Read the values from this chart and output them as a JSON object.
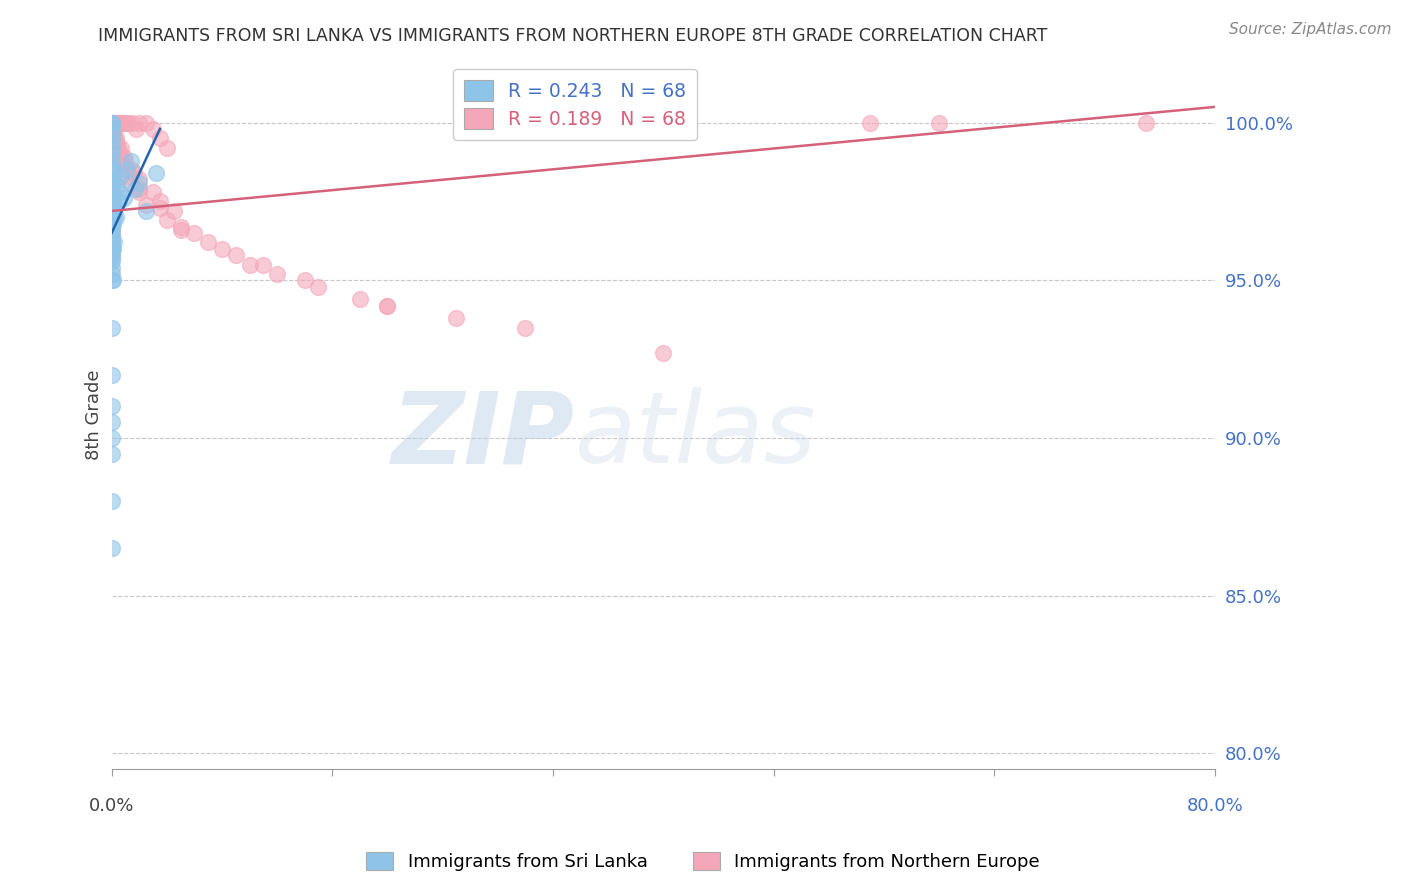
{
  "title": "IMMIGRANTS FROM SRI LANKA VS IMMIGRANTS FROM NORTHERN EUROPE 8TH GRADE CORRELATION CHART",
  "source": "Source: ZipAtlas.com",
  "ylabel": "8th Grade",
  "xlim": [
    0.0,
    80.0
  ],
  "ylim": [
    79.5,
    102.0
  ],
  "y_ticks": [
    80.0,
    85.0,
    90.0,
    95.0,
    100.0
  ],
  "r_sri_lanka": 0.243,
  "r_northern_europe": 0.189,
  "n_sri_lanka": 68,
  "n_northern_europe": 68,
  "blue_color": "#8ec4e8",
  "pink_color": "#f4a7b9",
  "blue_line_color": "#2166ac",
  "pink_line_color": "#d4607a",
  "legend_label_sri": "Immigrants from Sri Lanka",
  "legend_label_north": "Immigrants from Northern Europe",
  "watermark_zip": "ZIP",
  "watermark_atlas": "atlas",
  "sri_lanka_x": [
    0.0,
    0.0,
    0.0,
    0.0,
    0.0,
    0.0,
    0.0,
    0.0,
    0.0,
    0.0,
    0.0,
    0.0,
    0.0,
    0.0,
    0.0,
    0.0,
    0.0,
    0.0,
    0.0,
    0.0,
    0.0,
    0.0,
    0.0,
    0.0,
    0.0,
    0.0,
    0.0,
    0.0,
    0.0,
    0.0,
    0.0,
    0.0,
    0.0,
    0.0,
    0.0,
    0.0,
    0.0,
    0.0,
    0.0,
    0.0,
    0.1,
    0.1,
    0.1,
    0.1,
    0.2,
    0.2,
    0.3,
    0.4,
    0.5,
    0.6,
    0.7,
    0.9,
    1.1,
    1.4,
    1.7,
    2.0,
    2.5,
    3.2,
    0.0,
    0.0,
    0.0,
    0.0,
    0.0,
    0.0,
    0.0,
    0.0,
    0.1,
    0.2
  ],
  "sri_lanka_y": [
    100.0,
    100.0,
    100.0,
    99.8,
    99.6,
    99.4,
    99.2,
    99.0,
    98.8,
    98.6,
    98.4,
    98.2,
    98.0,
    97.8,
    97.6,
    97.4,
    97.2,
    97.0,
    96.8,
    96.6,
    96.4,
    96.2,
    96.0,
    95.8,
    95.6,
    95.4,
    95.2,
    95.0,
    98.5,
    97.5,
    97.3,
    97.1,
    96.9,
    96.1,
    95.9,
    96.7,
    96.5,
    96.3,
    96.0,
    95.7,
    98.2,
    97.5,
    96.8,
    96.0,
    97.3,
    96.2,
    97.0,
    98.0,
    97.5,
    97.8,
    98.3,
    97.6,
    98.5,
    98.8,
    97.9,
    98.1,
    97.2,
    98.4,
    93.5,
    92.0,
    91.0,
    90.5,
    90.0,
    89.5,
    88.0,
    86.5,
    95.0,
    97.0
  ],
  "northern_europe_x": [
    0.1,
    0.2,
    0.3,
    0.4,
    0.5,
    0.6,
    0.7,
    0.8,
    1.0,
    1.2,
    1.5,
    1.8,
    2.0,
    2.5,
    3.0,
    3.5,
    4.0,
    0.1,
    0.2,
    0.3,
    0.4,
    0.5,
    0.7,
    1.0,
    1.5,
    2.0,
    3.0,
    4.5,
    0.2,
    0.3,
    0.5,
    0.8,
    1.2,
    2.0,
    3.5,
    5.0,
    7.0,
    10.0,
    15.0,
    20.0,
    0.3,
    0.6,
    1.0,
    2.0,
    4.0,
    8.0,
    12.0,
    18.0,
    25.0,
    55.0,
    60.0,
    75.0,
    0.4,
    0.9,
    1.6,
    3.5,
    6.0,
    11.0,
    0.3,
    0.7,
    1.3,
    2.5,
    5.0,
    9.0,
    14.0,
    20.0,
    30.0,
    40.0
  ],
  "northern_europe_y": [
    100.0,
    100.0,
    100.0,
    100.0,
    100.0,
    100.0,
    100.0,
    100.0,
    100.0,
    100.0,
    100.0,
    99.8,
    100.0,
    100.0,
    99.8,
    99.5,
    99.2,
    99.7,
    99.5,
    99.3,
    99.0,
    98.8,
    99.2,
    98.8,
    98.5,
    98.2,
    97.8,
    97.2,
    99.6,
    99.4,
    99.1,
    98.7,
    98.3,
    97.9,
    97.3,
    96.7,
    96.2,
    95.5,
    94.8,
    94.2,
    99.5,
    99.0,
    98.6,
    97.8,
    96.9,
    96.0,
    95.2,
    94.4,
    93.8,
    100.0,
    100.0,
    100.0,
    99.3,
    98.9,
    98.4,
    97.5,
    96.5,
    95.5,
    99.2,
    98.7,
    98.1,
    97.4,
    96.6,
    95.8,
    95.0,
    94.2,
    93.5,
    92.7
  ]
}
